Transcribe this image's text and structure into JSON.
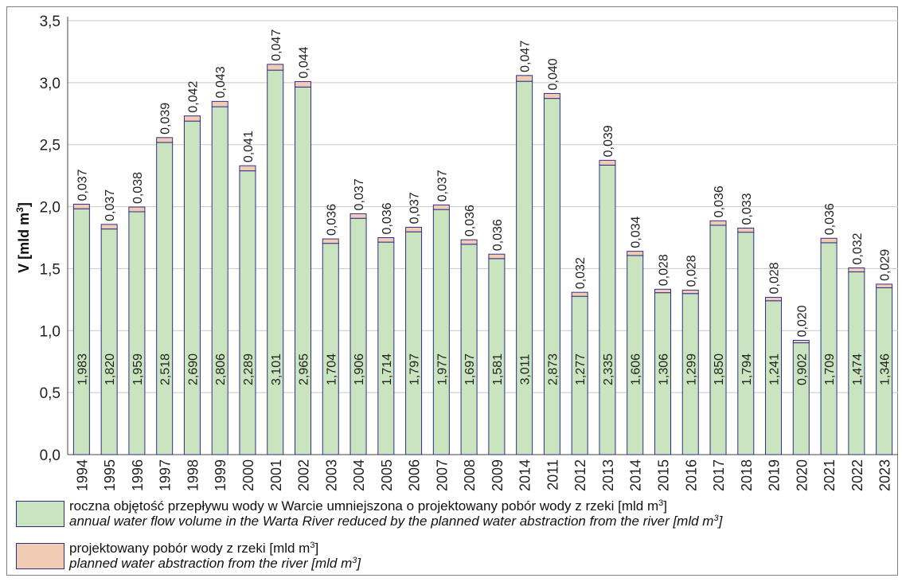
{
  "chart_data": {
    "type": "bar",
    "stacked": true,
    "ylabel": "V [mld m",
    "ylabel_sup": "3",
    "ylabel_suffix": "]",
    "ylim": [
      0,
      3.5
    ],
    "yticks": [
      "0,0",
      "0,5",
      "1,0",
      "1,5",
      "2,0",
      "2,5",
      "3,0",
      "3,5"
    ],
    "grid": true,
    "categories": [
      "1994",
      "1995",
      "1996",
      "1997",
      "1998",
      "1999",
      "2000",
      "2001",
      "2002",
      "2003",
      "2004",
      "2005",
      "2006",
      "2007",
      "2008",
      "2009",
      "2014",
      "2011",
      "2012",
      "2013",
      "2014",
      "2015",
      "2016",
      "2017",
      "2018",
      "2019",
      "2020",
      "2021",
      "2022",
      "2023"
    ],
    "series": [
      {
        "values": [
          1.983,
          1.82,
          1.959,
          2.518,
          2.69,
          2.806,
          2.289,
          3.101,
          2.965,
          1.704,
          1.906,
          1.714,
          1.797,
          1.977,
          1.697,
          1.581,
          3.011,
          2.873,
          1.277,
          2.335,
          1.606,
          1.306,
          1.299,
          1.85,
          1.794,
          1.241,
          0.902,
          1.709,
          1.474,
          1.346
        ],
        "labels": [
          "1,983",
          "1,820",
          "1,959",
          "2,518",
          "2,690",
          "2,806",
          "2,289",
          "3,101",
          "2,965",
          "1,704",
          "1,906",
          "1,714",
          "1,797",
          "1,977",
          "1,697",
          "1,581",
          "3,011",
          "2,873",
          "1,277",
          "2,335",
          "1,606",
          "1,306",
          "1,299",
          "1,850",
          "1,794",
          "1,241",
          "0,902",
          "1,709",
          "1,474",
          "1,346"
        ],
        "color": "#c9e4bf"
      },
      {
        "values": [
          0.037,
          0.037,
          0.038,
          0.039,
          0.042,
          0.043,
          0.041,
          0.047,
          0.044,
          0.036,
          0.037,
          0.036,
          0.037,
          0.037,
          0.036,
          0.036,
          0.047,
          0.04,
          0.032,
          0.039,
          0.034,
          0.028,
          0.028,
          0.036,
          0.033,
          0.028,
          0.02,
          0.036,
          0.032,
          0.029
        ],
        "labels": [
          "0,037",
          "0,037",
          "0,038",
          "0,039",
          "0,042",
          "0,043",
          "0,041",
          "0,047",
          "0,044",
          "0,036",
          "0,037",
          "0,036",
          "0,037",
          "0,037",
          "0,036",
          "0,036",
          "0,047",
          "0,040",
          "0,032",
          "0,039",
          "0,034",
          "0,028",
          "0,028",
          "0,036",
          "0,033",
          "0,028",
          "0,020",
          "0,036",
          "0,032",
          "0,029"
        ],
        "color": "#f2cbb4"
      }
    ],
    "bar_border_color": "#2e2e8a",
    "grid_color": "#c8c8c8"
  },
  "legend": {
    "item1": {
      "pl": "roczna objętość przepływu wody w Warcie umniejszona o projektowany pobór wody z rzeki [mld m",
      "pl_sup": "3",
      "pl_suffix": "]",
      "en": "annual water flow volume in the Warta River reduced by the planned water abstraction from the river [mld m",
      "en_sup": "3",
      "en_suffix": "]"
    },
    "item2": {
      "pl": "projektowany pobór wody z rzeki [mld m",
      "pl_sup": "3",
      "pl_suffix": "]",
      "en": "planned water abstraction from the river [mld m",
      "en_sup": "3",
      "en_suffix": "]"
    }
  }
}
